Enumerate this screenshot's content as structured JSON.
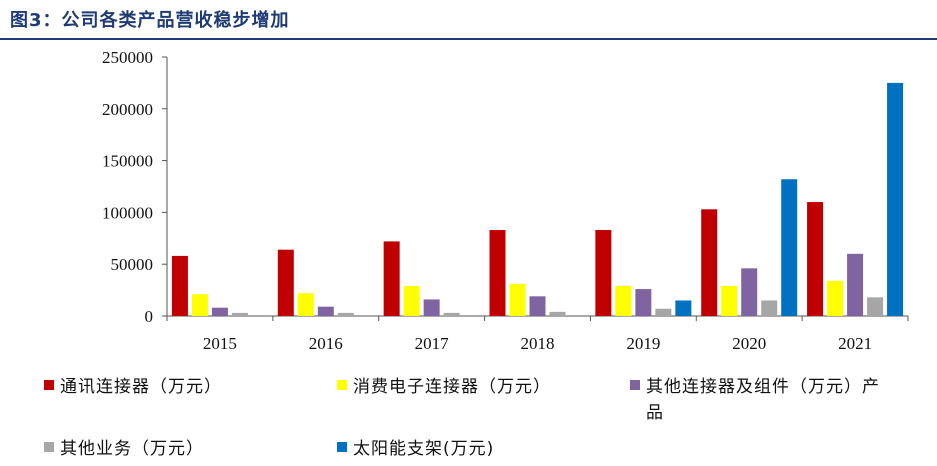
{
  "figure": {
    "title": "图3：公司各类产品营收稳步增加"
  },
  "chart_data": {
    "type": "bar",
    "categories": [
      "2015",
      "2016",
      "2017",
      "2018",
      "2019",
      "2020",
      "2021"
    ],
    "ylim": [
      0,
      250000
    ],
    "yticks": [
      0,
      50000,
      100000,
      150000,
      200000,
      250000
    ],
    "grid": false,
    "legend_position": "bottom",
    "series": [
      {
        "name": "通讯连接器（万元）",
        "color": "#c00000",
        "values": [
          58000,
          64000,
          72000,
          83000,
          83000,
          103000,
          110000
        ]
      },
      {
        "name": "消费电子连接器（万元）",
        "color": "#ffff00",
        "values": [
          21000,
          22000,
          29000,
          31000,
          29000,
          29000,
          34000
        ]
      },
      {
        "name": "其他连接器及组件（万元）产品",
        "color": "#8064a2",
        "values": [
          8000,
          9000,
          16000,
          19000,
          26000,
          46000,
          60000
        ]
      },
      {
        "name": "其他业务（万元）",
        "color": "#a6a6a6",
        "values": [
          3000,
          3000,
          3000,
          4000,
          7000,
          15000,
          18000
        ]
      },
      {
        "name": "太阳能支架(万元)",
        "color": "#0070c0",
        "values": [
          null,
          null,
          null,
          null,
          15000,
          132000,
          225000
        ]
      }
    ]
  }
}
